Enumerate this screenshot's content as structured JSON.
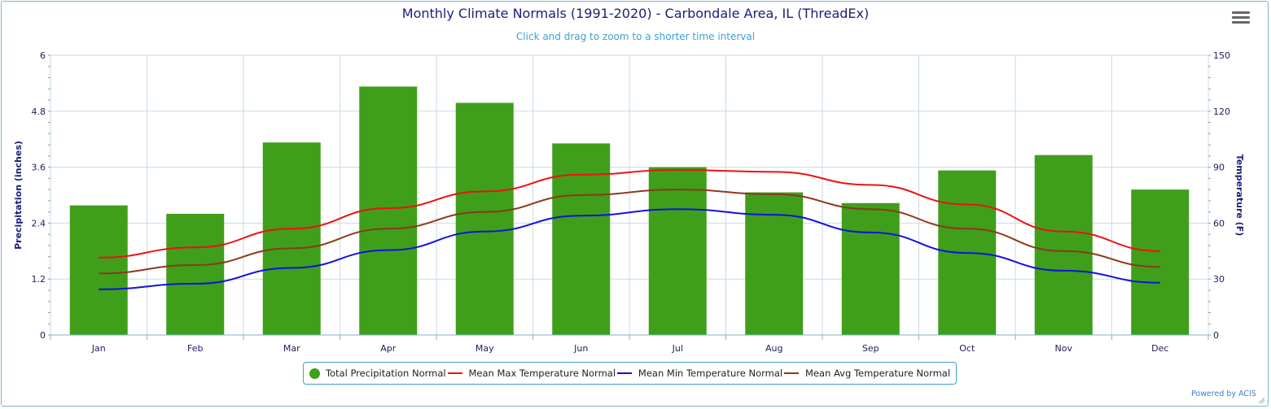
{
  "title": "Monthly Climate Normals (1991-2020) - Carbondale Area, IL (ThreadEx)",
  "subtitle": "Click and drag to zoom to a shorter time interval",
  "menu_icon": "hamburger-menu-icon",
  "footer": {
    "powered_by": "Powered by ACIS"
  },
  "colors": {
    "precip": "#3f9f1b",
    "max": "#ee1111",
    "min": "#1111dd",
    "avg": "#8b3a1a",
    "grid": "#c5dbe8",
    "axis_title": "#1c1c7a"
  },
  "chart_data": {
    "type": "bar",
    "title": "Monthly Climate Normals (1991-2020) - Carbondale Area, IL (ThreadEx)",
    "categories": [
      "Jan",
      "Feb",
      "Mar",
      "Apr",
      "May",
      "Jun",
      "Jul",
      "Aug",
      "Sep",
      "Oct",
      "Nov",
      "Dec"
    ],
    "y_left": {
      "label": "Precipitation (inches)",
      "range": [
        0,
        6
      ],
      "ticks": [
        "0",
        "1.2",
        "2.4",
        "3.6",
        "4.8",
        "6"
      ]
    },
    "y_right": {
      "label": "Temperature (F)",
      "range": [
        0,
        150
      ],
      "ticks": [
        "0",
        "30",
        "60",
        "90",
        "120",
        "150"
      ]
    },
    "grid": true,
    "legend_position": "bottom",
    "series": [
      {
        "name": "Total Precipitation Normal",
        "type": "bar",
        "axis": "left",
        "values": [
          2.78,
          2.6,
          4.13,
          5.33,
          4.98,
          4.11,
          3.6,
          3.06,
          2.83,
          3.53,
          3.86,
          3.12
        ]
      },
      {
        "name": "Mean Max Temperature Normal",
        "type": "line",
        "axis": "right",
        "values": [
          41.5,
          47.0,
          57.0,
          68.0,
          77.0,
          86.0,
          88.5,
          87.5,
          80.5,
          70.0,
          55.5,
          45.0
        ]
      },
      {
        "name": "Mean Min Temperature Normal",
        "type": "line",
        "axis": "right",
        "values": [
          24.5,
          27.5,
          36.0,
          45.5,
          55.5,
          64.0,
          67.5,
          64.5,
          55.0,
          44.0,
          34.5,
          28.0
        ]
      },
      {
        "name": "Mean Avg Temperature Normal",
        "type": "line",
        "axis": "right",
        "values": [
          33.0,
          37.5,
          46.5,
          57.0,
          66.0,
          75.0,
          78.0,
          75.5,
          67.5,
          57.0,
          45.0,
          36.5
        ]
      }
    ]
  }
}
